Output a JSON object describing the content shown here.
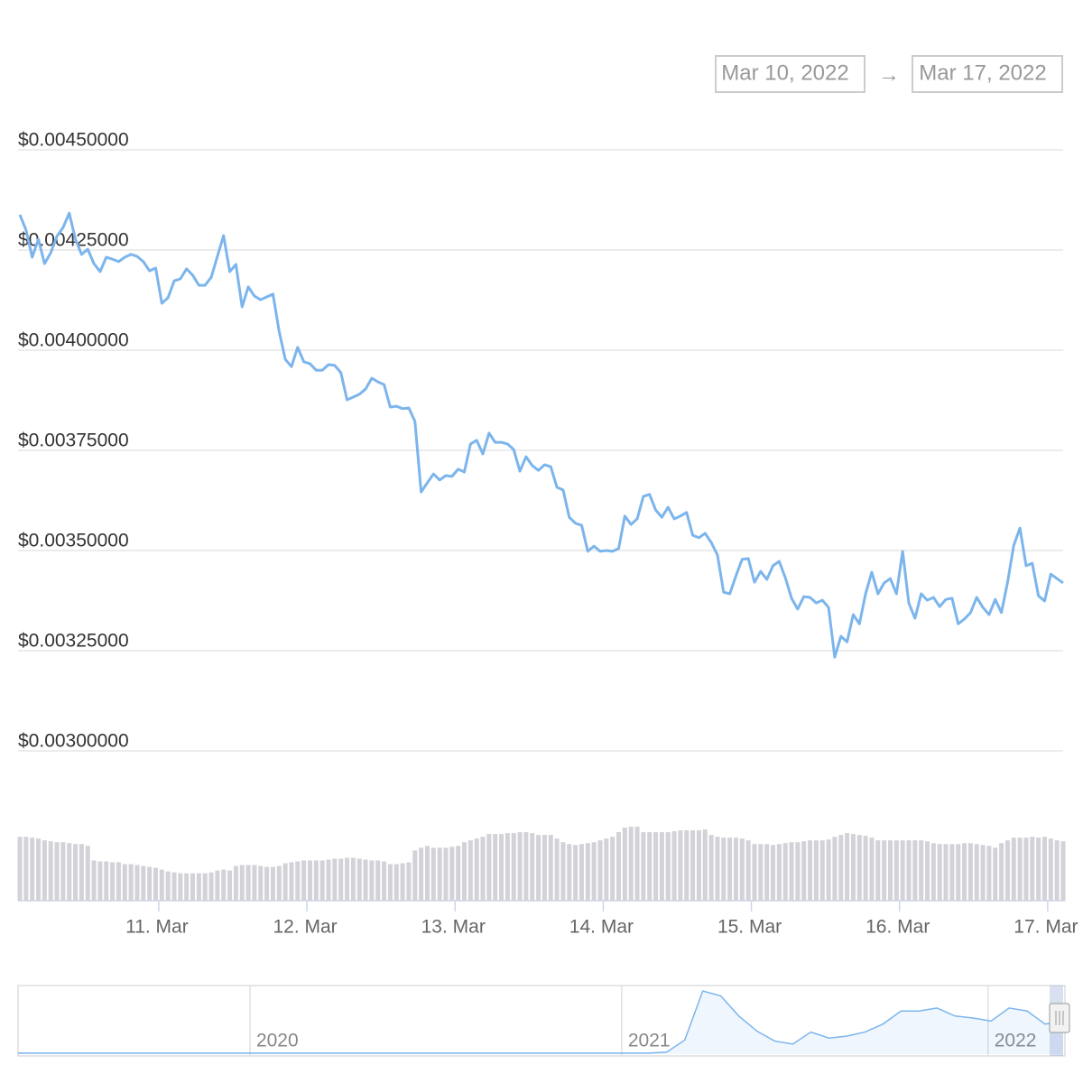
{
  "date_range": {
    "from": "Mar 10, 2022",
    "separator": "→",
    "to": "Mar 17, 2022"
  },
  "chart_data": [
    {
      "type": "line",
      "color": "#7cb5ec",
      "grid": true,
      "values": [
        0.004338,
        0.0043,
        0.004232,
        0.004277,
        0.004216,
        0.004243,
        0.004284,
        0.004306,
        0.004342,
        0.004277,
        0.004239,
        0.004252,
        0.004216,
        0.004196,
        0.004232,
        0.004227,
        0.004221,
        0.004232,
        0.004239,
        0.004234,
        0.004221,
        0.004198,
        0.004205,
        0.004117,
        0.004131,
        0.004173,
        0.004178,
        0.004203,
        0.004187,
        0.004162,
        0.004162,
        0.004182,
        0.004234,
        0.004286,
        0.004196,
        0.004214,
        0.004108,
        0.004158,
        0.004135,
        0.004126,
        0.004133,
        0.00414,
        0.004047,
        0.003977,
        0.003959,
        0.004007,
        0.003971,
        0.003966,
        0.00395,
        0.00395,
        0.003964,
        0.003962,
        0.003944,
        0.003876,
        0.003883,
        0.00389,
        0.003903,
        0.00393,
        0.003921,
        0.003914,
        0.003858,
        0.00386,
        0.003854,
        0.003856,
        0.003822,
        0.003646,
        0.003669,
        0.003691,
        0.003676,
        0.003687,
        0.003685,
        0.003703,
        0.003696,
        0.003766,
        0.003775,
        0.003741,
        0.003793,
        0.00377,
        0.00377,
        0.003766,
        0.003752,
        0.003698,
        0.003734,
        0.003712,
        0.0037,
        0.003714,
        0.003709,
        0.003658,
        0.003651,
        0.003583,
        0.003568,
        0.003563,
        0.003498,
        0.003511,
        0.003498,
        0.0035,
        0.003498,
        0.003505,
        0.003586,
        0.003565,
        0.003579,
        0.003635,
        0.00364,
        0.003601,
        0.003583,
        0.003608,
        0.003579,
        0.003586,
        0.003595,
        0.003538,
        0.003532,
        0.003543,
        0.00352,
        0.003489,
        0.003396,
        0.003392,
        0.003437,
        0.003478,
        0.00348,
        0.003421,
        0.003448,
        0.003428,
        0.003462,
        0.003473,
        0.003432,
        0.003381,
        0.003354,
        0.003385,
        0.003383,
        0.003369,
        0.003376,
        0.003358,
        0.003234,
        0.003286,
        0.003272,
        0.00334,
        0.003317,
        0.003392,
        0.003446,
        0.003392,
        0.003419,
        0.00343,
        0.003392,
        0.003498,
        0.003369,
        0.003331,
        0.003392,
        0.003376,
        0.003383,
        0.00336,
        0.003378,
        0.003381,
        0.003317,
        0.003329,
        0.003345,
        0.003383,
        0.003358,
        0.00334,
        0.003378,
        0.003345,
        0.003421,
        0.003513,
        0.003556,
        0.003462,
        0.003468,
        0.003387,
        0.003374,
        0.003441,
        0.00343,
        0.003419
      ],
      "xlim": [
        0,
        169
      ],
      "xticks": [
        {
          "value": 22.5,
          "label": "11. Mar"
        },
        {
          "value": 46.5,
          "label": "12. Mar"
        },
        {
          "value": 70.5,
          "label": "13. Mar"
        },
        {
          "value": 94.5,
          "label": "14. Mar"
        },
        {
          "value": 118.5,
          "label": "15. Mar"
        },
        {
          "value": 142.5,
          "label": "16. Mar"
        },
        {
          "value": 166.5,
          "label": "17. Mar"
        }
      ],
      "ylim": [
        0.003,
        0.0045
      ],
      "yticks": [
        {
          "value": 0.003,
          "label": "$0.00300000"
        },
        {
          "value": 0.00325,
          "label": "$0.00325000"
        },
        {
          "value": 0.0035,
          "label": "$0.00350000"
        },
        {
          "value": 0.00375,
          "label": "$0.00375000"
        },
        {
          "value": 0.004,
          "label": "$0.00400000"
        },
        {
          "value": 0.00425,
          "label": "$0.00425000"
        },
        {
          "value": 0.0045,
          "label": "$0.00450000"
        }
      ]
    },
    {
      "type": "bar",
      "color": "#d2d2d8",
      "values": [
        70,
        70,
        69,
        68,
        66,
        65,
        64,
        64,
        63,
        62,
        62,
        60,
        44,
        43,
        43,
        42,
        42,
        40,
        40,
        39,
        38,
        37,
        36,
        34,
        32,
        31,
        30,
        30,
        30,
        30,
        30,
        31,
        33,
        34,
        33,
        38,
        39,
        39,
        39,
        38,
        37,
        37,
        38,
        41,
        42,
        43,
        44,
        44,
        44,
        44,
        45,
        46,
        46,
        47,
        47,
        46,
        45,
        44,
        44,
        43,
        40,
        40,
        41,
        42,
        55,
        58,
        60,
        58,
        58,
        58,
        59,
        60,
        64,
        66,
        68,
        70,
        73,
        73,
        73,
        74,
        74,
        75,
        75,
        74,
        72,
        72,
        72,
        68,
        64,
        62,
        61,
        62,
        63,
        64,
        66,
        68,
        70,
        75,
        80,
        81,
        81,
        75,
        75,
        75,
        75,
        75,
        76,
        77,
        77,
        77,
        77,
        78,
        72,
        70,
        69,
        69,
        69,
        68,
        66,
        62,
        62,
        62,
        61,
        62,
        63,
        64,
        64,
        65,
        66,
        66,
        66,
        67,
        70,
        72,
        74,
        73,
        72,
        71,
        69,
        66,
        66,
        66,
        66,
        66,
        66,
        66,
        66,
        65,
        63,
        62,
        62,
        62,
        62,
        63,
        63,
        62,
        61,
        60,
        58,
        63,
        66,
        69,
        69,
        69,
        70,
        69,
        70,
        68,
        66,
        65
      ]
    },
    {
      "type": "area",
      "color": "#7cb5ec",
      "values": [
        1,
        1,
        1,
        1,
        1,
        1,
        1,
        1,
        1,
        1,
        1,
        1,
        1,
        1,
        1,
        1,
        1,
        1,
        1,
        1,
        1,
        1,
        1,
        1,
        1,
        1,
        1,
        1,
        1,
        1,
        1,
        1,
        1,
        1,
        1,
        1,
        2,
        14,
        63,
        58,
        38,
        23,
        13,
        10,
        22,
        16,
        18,
        22,
        30,
        43,
        43,
        46,
        38,
        36,
        33,
        46,
        43,
        30,
        33
      ],
      "xticks": [
        {
          "value": 12.87,
          "label": "2020"
        },
        {
          "value": 33.5,
          "label": "2021"
        },
        {
          "value": 53.83,
          "label": "2022"
        }
      ]
    }
  ]
}
